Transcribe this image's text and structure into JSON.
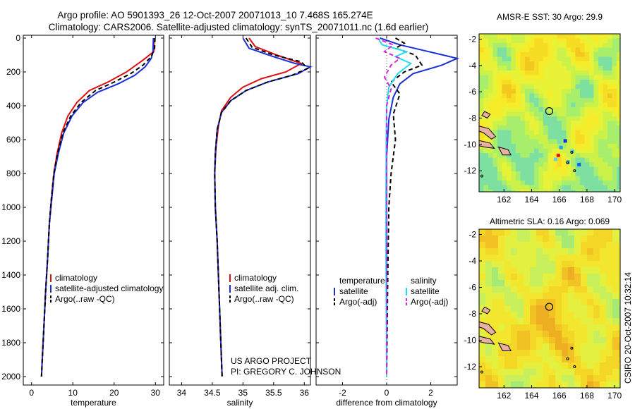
{
  "header": {
    "line1": "Argo profile: AO 5901393_26 12-Oct-2007 20071013_10 7.468S 165.274E",
    "line2": "Climatology: CARS2006. Satellite-adjusted climatology: synTS_20071011.nc (1.6d earlier)"
  },
  "credit": {
    "line1": "US ARGO PROJECT",
    "line2": "PI: GREGORY C. JOHNSON"
  },
  "timestamp": "CSIRO 20-Oct-2007 10:32:14",
  "colors": {
    "red": "#dd1111",
    "blue": "#1a2fd6",
    "black": "#000000",
    "cyan": "#22ddee",
    "magenta": "#dd22dd",
    "land": "#e8b0a0"
  },
  "chart_data": [
    {
      "id": "temperature",
      "type": "line",
      "xlabel": "temperature",
      "ylabel": "",
      "xlim": [
        -2,
        32
      ],
      "ylim": [
        2050,
        0
      ],
      "xticks": [
        0,
        10,
        20,
        30
      ],
      "yticks": [
        0,
        200,
        400,
        600,
        800,
        1000,
        1200,
        1400,
        1600,
        1800,
        2000
      ],
      "legend": [
        "climatology",
        "satellite-adjusted climatology",
        "Argo(..raw -QC)"
      ],
      "series": [
        {
          "name": "climatology",
          "color": "red",
          "dash": "",
          "points": [
            [
              29.7,
              0
            ],
            [
              29.6,
              80
            ],
            [
              27,
              130
            ],
            [
              23,
              200
            ],
            [
              18.5,
              260
            ],
            [
              14,
              310
            ],
            [
              11,
              380
            ],
            [
              8.8,
              460
            ],
            [
              7.3,
              560
            ],
            [
              6.2,
              680
            ],
            [
              5.4,
              800
            ],
            [
              4.8,
              950
            ],
            [
              4.3,
              1100
            ],
            [
              3.9,
              1300
            ],
            [
              3.4,
              1500
            ],
            [
              3,
              1700
            ],
            [
              2.6,
              1900
            ],
            [
              2.4,
              2000
            ]
          ]
        },
        {
          "name": "satellite-adjusted climatology",
          "color": "blue",
          "dash": "",
          "points": [
            [
              29.5,
              0
            ],
            [
              29.4,
              80
            ],
            [
              29,
              120
            ],
            [
              27.5,
              170
            ],
            [
              25,
              220
            ],
            [
              21,
              270
            ],
            [
              16,
              320
            ],
            [
              12.5,
              380
            ],
            [
              9.8,
              460
            ],
            [
              7.8,
              560
            ],
            [
              6.5,
              680
            ],
            [
              5.5,
              800
            ],
            [
              4.9,
              950
            ],
            [
              4.3,
              1100
            ],
            [
              3.9,
              1300
            ],
            [
              3.4,
              1500
            ],
            [
              3,
              1700
            ],
            [
              2.6,
              1900
            ],
            [
              2.4,
              2000
            ]
          ]
        },
        {
          "name": "Argo(..raw -QC)",
          "color": "black",
          "dash": "6,4",
          "points": [
            [
              29.9,
              0
            ],
            [
              29.8,
              60
            ],
            [
              29,
              110
            ],
            [
              27,
              160
            ],
            [
              24,
              210
            ],
            [
              20,
              260
            ],
            [
              15.5,
              310
            ],
            [
              12,
              380
            ],
            [
              9.5,
              460
            ],
            [
              7.6,
              560
            ],
            [
              6.3,
              680
            ],
            [
              5.4,
              800
            ],
            [
              4.8,
              950
            ],
            [
              4.3,
              1100
            ],
            [
              3.9,
              1300
            ],
            [
              3.4,
              1500
            ],
            [
              3,
              1700
            ],
            [
              2.6,
              1900
            ],
            [
              2.4,
              2000
            ]
          ]
        }
      ]
    },
    {
      "id": "salinity",
      "type": "line",
      "xlabel": "salinity",
      "ylabel": "",
      "xlim": [
        33.8,
        36.1
      ],
      "ylim": [
        2050,
        0
      ],
      "xticks": [
        34,
        34.5,
        35,
        35.5,
        36
      ],
      "xtick_labels": [
        "34",
        "34.5",
        "35",
        "35.5",
        "36"
      ],
      "legend": [
        "climatology",
        "satellite adj. clim.",
        "Argo(..raw -QC)"
      ],
      "series": [
        {
          "name": "climatology",
          "color": "red",
          "dash": "",
          "points": [
            [
              35.1,
              0
            ],
            [
              35.2,
              50
            ],
            [
              35.55,
              100
            ],
            [
              35.95,
              150
            ],
            [
              35.7,
              200
            ],
            [
              35.3,
              240
            ],
            [
              35,
              290
            ],
            [
              34.8,
              350
            ],
            [
              34.65,
              430
            ],
            [
              34.6,
              520
            ],
            [
              34.56,
              650
            ],
            [
              34.54,
              800
            ],
            [
              34.55,
              1000
            ],
            [
              34.58,
              1200
            ],
            [
              34.61,
              1500
            ],
            [
              34.64,
              1800
            ],
            [
              34.66,
              2000
            ]
          ]
        },
        {
          "name": "satellite adj. clim.",
          "color": "blue",
          "dash": "",
          "points": [
            [
              35,
              0
            ],
            [
              35.1,
              60
            ],
            [
              35.5,
              110
            ],
            [
              35.85,
              150
            ],
            [
              36.1,
              170
            ],
            [
              35.9,
              210
            ],
            [
              35.4,
              260
            ],
            [
              35.05,
              310
            ],
            [
              34.8,
              370
            ],
            [
              34.65,
              440
            ],
            [
              34.58,
              540
            ],
            [
              34.55,
              680
            ],
            [
              34.54,
              800
            ],
            [
              34.55,
              1000
            ],
            [
              34.58,
              1200
            ],
            [
              34.61,
              1500
            ],
            [
              34.64,
              1800
            ],
            [
              34.66,
              2000
            ]
          ]
        },
        {
          "name": "Argo(..raw -QC)",
          "color": "black",
          "dash": "6,4",
          "points": [
            [
              35.05,
              0
            ],
            [
              35.15,
              55
            ],
            [
              35.5,
              100
            ],
            [
              35.95,
              140
            ],
            [
              36.05,
              180
            ],
            [
              35.8,
              220
            ],
            [
              35.4,
              260
            ],
            [
              35.05,
              310
            ],
            [
              34.8,
              370
            ],
            [
              34.65,
              440
            ],
            [
              34.58,
              540
            ],
            [
              34.55,
              680
            ],
            [
              34.54,
              800
            ],
            [
              34.55,
              1000
            ],
            [
              34.58,
              1200
            ],
            [
              34.61,
              1500
            ],
            [
              34.64,
              1800
            ],
            [
              34.66,
              2000
            ]
          ]
        }
      ]
    },
    {
      "id": "difference",
      "type": "line",
      "xlabel": "difference from climatology",
      "ylabel": "",
      "xlim": [
        -3.2,
        3.2
      ],
      "ylim": [
        2050,
        0
      ],
      "xticks": [
        -2,
        0,
        2
      ],
      "legend_left_title": "temperature",
      "legend_right_title": "salinity",
      "legend_left": [
        "satellite",
        "Argo(-adj)"
      ],
      "legend_right": [
        "satellite",
        "Argo(-adj)"
      ],
      "series": [
        {
          "name": "temperature satellite",
          "color": "blue",
          "dash": "",
          "points": [
            [
              -0.3,
              0
            ],
            [
              0.6,
              40
            ],
            [
              1.9,
              80
            ],
            [
              3.2,
              120
            ],
            [
              2.5,
              160
            ],
            [
              1.2,
              210
            ],
            [
              0.6,
              270
            ],
            [
              0.3,
              350
            ],
            [
              0.1,
              480
            ],
            [
              0,
              700
            ],
            [
              0,
              1000
            ],
            [
              0,
              1400
            ],
            [
              0,
              2000
            ]
          ]
        },
        {
          "name": "temperature Argo(-adj)",
          "color": "black",
          "dash": "6,4",
          "points": [
            [
              0.4,
              0
            ],
            [
              0.8,
              30
            ],
            [
              0.4,
              60
            ],
            [
              1.3,
              100
            ],
            [
              1.6,
              160
            ],
            [
              0.8,
              200
            ],
            [
              0.2,
              260
            ],
            [
              0.6,
              330
            ],
            [
              0.3,
              450
            ],
            [
              0.4,
              600
            ],
            [
              0.2,
              800
            ],
            [
              0.1,
              1000
            ],
            [
              0.05,
              1400
            ],
            [
              0,
              2000
            ]
          ]
        },
        {
          "name": "salinity satellite",
          "color": "cyan",
          "dash": "",
          "points": [
            [
              -0.4,
              0
            ],
            [
              -0.2,
              40
            ],
            [
              0.9,
              80
            ],
            [
              0.4,
              110
            ],
            [
              1.1,
              150
            ],
            [
              0.5,
              210
            ],
            [
              0.1,
              290
            ],
            [
              0,
              400
            ],
            [
              -0.02,
              600
            ],
            [
              -0.03,
              900
            ],
            [
              -0.03,
              1300
            ],
            [
              0,
              2000
            ]
          ]
        },
        {
          "name": "salinity Argo(-adj)",
          "color": "magenta",
          "dash": "6,4",
          "points": [
            [
              -0.5,
              0
            ],
            [
              0.3,
              40
            ],
            [
              -0.1,
              80
            ],
            [
              0.6,
              120
            ],
            [
              0.2,
              160
            ],
            [
              -0.1,
              230
            ],
            [
              0.2,
              300
            ],
            [
              0,
              400
            ],
            [
              0,
              700
            ],
            [
              0,
              1000
            ],
            [
              0,
              1500
            ],
            [
              0,
              2000
            ]
          ]
        }
      ]
    },
    {
      "id": "sst-map",
      "type": "heatmap",
      "title": "AMSR-E SST: 30 Argo: 29.9",
      "xlim": [
        160.2,
        170.4
      ],
      "ylim": [
        -13.6,
        -1.6
      ],
      "xticks": [
        162,
        164,
        166,
        168,
        170
      ],
      "yticks": [
        -2,
        -4,
        -6,
        -8,
        -10,
        -12
      ],
      "argo_position": [
        165.27,
        -7.47
      ]
    },
    {
      "id": "sla-map",
      "type": "heatmap",
      "title": "Altimetric SLA: 0.16 Argo: 0.069",
      "xlim": [
        160.2,
        170.4
      ],
      "ylim": [
        -13.6,
        -1.6
      ],
      "xticks": [
        162,
        164,
        166,
        168,
        170
      ],
      "yticks": [
        -2,
        -4,
        -6,
        -8,
        -10,
        -12
      ],
      "argo_position": [
        165.27,
        -7.47
      ]
    }
  ]
}
